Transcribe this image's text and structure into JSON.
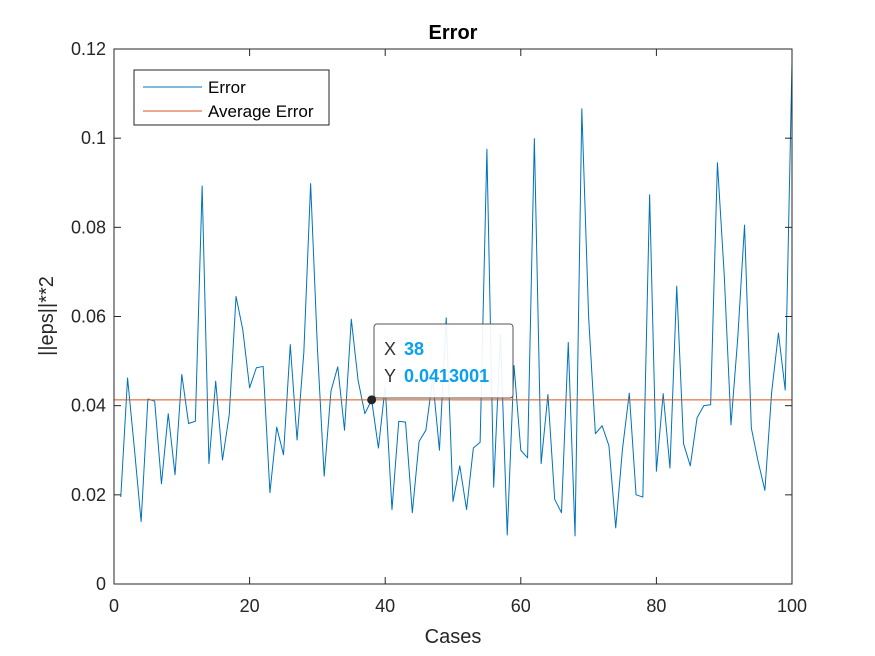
{
  "chart_data": {
    "type": "line",
    "title": "Error",
    "xlabel": "Cases",
    "ylabel": "||eps||**2",
    "xlim": [
      0,
      100
    ],
    "ylim": [
      0,
      0.12
    ],
    "xticks": [
      "0",
      "20",
      "40",
      "60",
      "80",
      "100"
    ],
    "yticks": [
      "0",
      "0.02",
      "0.04",
      "0.06",
      "0.08",
      "0.1",
      "0.12"
    ],
    "legend_position": "top-left",
    "grid": false,
    "series": [
      {
        "name": "Error",
        "color": "#0072bd",
        "x": [
          1,
          2,
          3,
          4,
          5,
          6,
          7,
          8,
          9,
          10,
          11,
          12,
          13,
          14,
          15,
          16,
          17,
          18,
          19,
          20,
          21,
          22,
          23,
          24,
          25,
          26,
          27,
          28,
          29,
          30,
          31,
          32,
          33,
          34,
          35,
          36,
          37,
          38,
          39,
          40,
          41,
          42,
          43,
          44,
          45,
          46,
          47,
          48,
          49,
          50,
          51,
          52,
          53,
          54,
          55,
          56,
          57,
          58,
          59,
          60,
          61,
          62,
          63,
          64,
          65,
          66,
          67,
          68,
          69,
          70,
          71,
          72,
          73,
          74,
          75,
          76,
          77,
          78,
          79,
          80,
          81,
          82,
          83,
          84,
          85,
          86,
          87,
          88,
          89,
          90,
          91,
          92,
          93,
          94,
          95,
          96,
          97,
          98,
          99,
          100
        ],
        "y": [
          0.0195,
          0.0462,
          0.0305,
          0.014,
          0.0415,
          0.041,
          0.0225,
          0.0382,
          0.0245,
          0.047,
          0.036,
          0.0365,
          0.0893,
          0.027,
          0.0455,
          0.0278,
          0.038,
          0.0645,
          0.057,
          0.044,
          0.0485,
          0.0488,
          0.0205,
          0.0352,
          0.029,
          0.0537,
          0.0323,
          0.052,
          0.0898,
          0.053,
          0.0242,
          0.0433,
          0.0487,
          0.0345,
          0.0594,
          0.0457,
          0.0382,
          0.0413,
          0.0305,
          0.0443,
          0.0167,
          0.0365,
          0.0363,
          0.016,
          0.032,
          0.0345,
          0.046,
          0.03,
          0.0597,
          0.0185,
          0.0265,
          0.0167,
          0.0305,
          0.0318,
          0.0975,
          0.0217,
          0.056,
          0.011,
          0.049,
          0.03,
          0.0283,
          0.0999,
          0.027,
          0.0425,
          0.019,
          0.016,
          0.0542,
          0.0108,
          0.1066,
          0.06,
          0.0337,
          0.0355,
          0.031,
          0.0126,
          0.0303,
          0.0428,
          0.02,
          0.0195,
          0.0873,
          0.0253,
          0.0427,
          0.026,
          0.0668,
          0.0315,
          0.0265,
          0.0373,
          0.04,
          0.0402,
          0.0945,
          0.0695,
          0.0357,
          0.0552,
          0.0805,
          0.035,
          0.0275,
          0.021,
          0.043,
          0.0563,
          0.0435,
          0.117
        ]
      },
      {
        "name": "Average Error",
        "color": "#d95319",
        "x": [
          0,
          100
        ],
        "y": [
          0.0413,
          0.0413
        ]
      }
    ],
    "datatip": {
      "x_key": "X",
      "x_value": "38",
      "y_key": "Y",
      "y_value": "0.0413001",
      "point": [
        38,
        0.0413001
      ]
    }
  }
}
